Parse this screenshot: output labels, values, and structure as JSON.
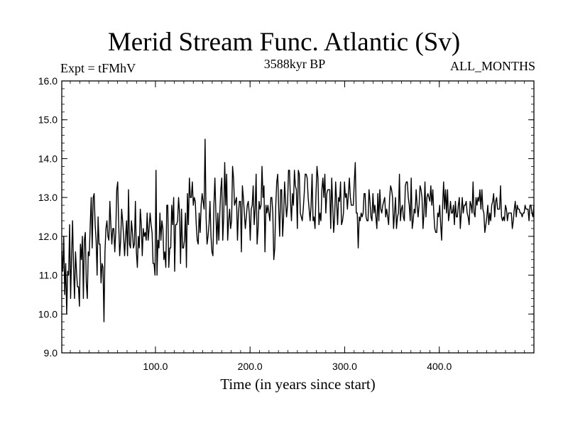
{
  "chart_data": {
    "type": "line",
    "title": "Merid Stream Func. Atlantic (Sv)",
    "subtitle": "3588kyr BP",
    "left_label": "Expt = tFMhV",
    "right_label": "ALL_MONTHS",
    "xlabel": "Time (in years since start)",
    "ylabel": "",
    "xlim": [
      1,
      500
    ],
    "ylim": [
      9.0,
      16.0
    ],
    "x_ticks": [
      100,
      200,
      300,
      400
    ],
    "x_tick_labels": [
      "100.0",
      "200.0",
      "300.0",
      "400.0"
    ],
    "y_ticks": [
      9,
      10,
      11,
      12,
      13,
      14,
      15,
      16
    ],
    "y_tick_labels": [
      "9.0",
      "10.0",
      "11.0",
      "12.0",
      "13.0",
      "14.0",
      "15.0",
      "16.0"
    ],
    "series": [
      {
        "name": "Merid Stream Func. Atlantic",
        "x_start": 1,
        "x_step": 5,
        "values": [
          11.6,
          11.1,
          12.0,
          10.5,
          11.3,
          10.0,
          11.1,
          11.0,
          12.3,
          10.4,
          11.5,
          12.4,
          11.2,
          10.4,
          11.6,
          11.1,
          10.7,
          10.7,
          10.2,
          11.8,
          11.4,
          12.0,
          10.4,
          11.9,
          12.1,
          10.8,
          10.4,
          11.6,
          11.5,
          12.3,
          13.0,
          11.7,
          13.0,
          13.1,
          12.3,
          11.9,
          11.0,
          12.5,
          11.8,
          11.8,
          10.8,
          11.3,
          11.2,
          9.8,
          11.6,
          12.2,
          12.4,
          12.0,
          11.9,
          12.9,
          12.3,
          11.8,
          12.2,
          12.2,
          11.6,
          12.1,
          13.2,
          13.4,
          12.3,
          11.5,
          11.9,
          12.7,
          12.4,
          12.0,
          11.5,
          12.0,
          12.4,
          11.5,
          13.2,
          11.8,
          11.7,
          12.4,
          12.1,
          11.7,
          11.8,
          12.9,
          11.6,
          11.2,
          12.0,
          11.7,
          12.7,
          12.3,
          11.5,
          12.2,
          12.0,
          12.1,
          11.9,
          12.6,
          11.9,
          12.2,
          12.6,
          12.3,
          12.1,
          11.3,
          11.3,
          11.0,
          13.7,
          11.0,
          11.9,
          11.7,
          12.6,
          11.9,
          12.4,
          12.2,
          11.4,
          11.6,
          11.2,
          12.8,
          12.8,
          11.2,
          11.7,
          11.7,
          12.8,
          12.3,
          13.0,
          11.1,
          12.3,
          12.3,
          12.4,
          13.0,
          12.6,
          11.3,
          12.7,
          11.7,
          11.7,
          11.9,
          12.6,
          11.2,
          13.1,
          12.3,
          13.5,
          13.0,
          13.0,
          13.4,
          12.8,
          13.0,
          12.9,
          12.3,
          11.9,
          11.8,
          12.6,
          12.1,
          12.8,
          13.1,
          12.9,
          12.7,
          14.5,
          12.5,
          11.8,
          12.0,
          12.3,
          12.9,
          12.0,
          11.6,
          11.5,
          12.8,
          13.5,
          12.6,
          11.8,
          12.6,
          11.9,
          12.6,
          13.2,
          13.5,
          11.9,
          12.5,
          13.9,
          12.8,
          13.6,
          11.9,
          12.4,
          12.7,
          12.2,
          12.4,
          13.8,
          13.5,
          12.8,
          12.9,
          13.0,
          11.9,
          12.6,
          12.9,
          12.9,
          11.6,
          13.3,
          13.0,
          12.6,
          12.2,
          12.5,
          12.8,
          12.9,
          12.6,
          11.9,
          12.7,
          12.8,
          13.3,
          12.3,
          12.7,
          13.6,
          11.8,
          12.2,
          12.9,
          12.7,
          12.8,
          13.8,
          13.0,
          13.3,
          11.6,
          12.8,
          12.6,
          12.8,
          12.6,
          12.4,
          13.0,
          13.0,
          12.6,
          11.4,
          11.7,
          12.8,
          13.4,
          13.6,
          12.7,
          12.0,
          13.2,
          13.2,
          12.0,
          12.5,
          13.4,
          12.9,
          12.5,
          12.8,
          13.7,
          13.7,
          12.9,
          12.4,
          13.1,
          12.8,
          13.7,
          13.3,
          13.2,
          12.2,
          13.7,
          13.6,
          12.6,
          12.5,
          12.4,
          12.7,
          13.1,
          13.6,
          13.6,
          13.5,
          13.0,
          12.7,
          12.4,
          12.8,
          13.6,
          12.4,
          12.5,
          12.2,
          13.1,
          13.8,
          13.5,
          12.3,
          12.6,
          12.4,
          13.2,
          13.5,
          13.0,
          13.6,
          12.6,
          13.1,
          13.2,
          13.2,
          13.2,
          12.2,
          13.5,
          12.8,
          12.1,
          12.5,
          13.4,
          12.9,
          12.3,
          13.0,
          12.9,
          13.4,
          12.3,
          12.4,
          12.6,
          13.4,
          13.0,
          13.1,
          12.7,
          13.1,
          13.5,
          13.0,
          12.8,
          12.8,
          12.8,
          13.4,
          13.9,
          12.6,
          12.6,
          11.7,
          12.5,
          12.4,
          12.6,
          12.5,
          12.6,
          13.1,
          13.1,
          12.5,
          12.4,
          12.4,
          13.2,
          12.9,
          12.5,
          12.4,
          13.1,
          12.6,
          12.8,
          12.5,
          12.2,
          13.1,
          12.4,
          13.2,
          12.7,
          12.6,
          12.8,
          12.9,
          13.0,
          12.5,
          12.7,
          12.5,
          12.3,
          13.0,
          13.3,
          13.2,
          13.0,
          12.2,
          12.6,
          13.0,
          12.2,
          12.5,
          12.6,
          13.6,
          12.4,
          12.7,
          12.8,
          12.5,
          12.4,
          13.3,
          13.4,
          13.4,
          13.0,
          12.8,
          12.4,
          13.5,
          12.2,
          12.4,
          12.7,
          12.6,
          13.2,
          12.8,
          12.5,
          12.8,
          13.3,
          13.2,
          13.0,
          12.2,
          12.6,
          13.4,
          12.5,
          13.0,
          13.1,
          13.0,
          12.9,
          13.3,
          12.8,
          13.2,
          12.6,
          12.2,
          12.1,
          12.1,
          12.6,
          12.5,
          12.8,
          12.3,
          11.9,
          12.8,
          13.4,
          12.7,
          13.2,
          12.6,
          13.2,
          12.4,
          12.6,
          12.9,
          12.6,
          12.6,
          12.8,
          12.3,
          12.9,
          12.5,
          12.5,
          12.8,
          13.0,
          12.2,
          12.6,
          13.0,
          12.6,
          12.8,
          12.8,
          12.9,
          12.6,
          12.5,
          12.3,
          12.9,
          12.8,
          12.6,
          13.4,
          12.6,
          12.5,
          13.0,
          12.8,
          13.0,
          12.9,
          13.2,
          12.7,
          13.2,
          12.7,
          12.6,
          12.1,
          12.3,
          12.5,
          12.8,
          12.3,
          12.6,
          12.4,
          12.8,
          12.9,
          13.1,
          12.5,
          12.9,
          13.0,
          12.7,
          12.7,
          12.7,
          13.3,
          12.5,
          12.4,
          12.5,
          12.4,
          12.8,
          12.7,
          12.4,
          12.6,
          12.6,
          12.6,
          12.6,
          12.2,
          12.4,
          12.7,
          12.9,
          12.5,
          12.8,
          12.7,
          12.7,
          12.6,
          12.6,
          12.5,
          12.6,
          12.6,
          12.8,
          12.7,
          12.7,
          12.7,
          12.4,
          12.8,
          12.8,
          12.6,
          12.5,
          12.8
        ]
      }
    ]
  }
}
